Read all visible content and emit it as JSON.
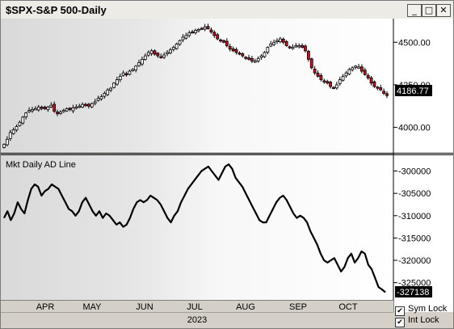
{
  "window": {
    "title": "$SPX-S&P 500-Daily",
    "minimize_glyph": "_",
    "maximize_glyph": "□",
    "close_glyph": "✕"
  },
  "x_axis": {
    "months": [
      "APR",
      "MAY",
      "JUN",
      "JUL",
      "AUG",
      "SEP",
      "OCT"
    ],
    "year": "2023"
  },
  "locks": {
    "sym_lock": {
      "label": "Sym Lock",
      "checked": true
    },
    "int_lock": {
      "label": "Int Lock",
      "checked": true
    }
  },
  "chart_data": [
    {
      "type": "candlestick",
      "title": "$SPX-S&P 500-Daily",
      "y_ticks": [
        4000,
        4250,
        4500
      ],
      "y_tick_labels": [
        "4000.00",
        "4250.00",
        "4500.00"
      ],
      "ylim": [
        3870,
        4620
      ],
      "last_value_label": "4186.77",
      "x_month_index": [
        0.5,
        1.5,
        2.5,
        3.5,
        4.5,
        5.5,
        6.5
      ],
      "closes": [
        3900,
        3930,
        3970,
        3985,
        4005,
        4030,
        4060,
        4085,
        4100,
        4105,
        4110,
        4120,
        4115,
        4110,
        4120,
        4130,
        4095,
        4080,
        4090,
        4100,
        4110,
        4105,
        4115,
        4120,
        4125,
        4135,
        4130,
        4125,
        4140,
        4150,
        4170,
        4180,
        4200,
        4220,
        4230,
        4260,
        4280,
        4300,
        4320,
        4310,
        4330,
        4340,
        4360,
        4380,
        4400,
        4420,
        4440,
        4450,
        4430,
        4420,
        4410,
        4425,
        4440,
        4455,
        4470,
        4490,
        4510,
        4530,
        4540,
        4555,
        4560,
        4570,
        4575,
        4580,
        4590,
        4580,
        4560,
        4540,
        4520,
        4510,
        4500,
        4480,
        4460,
        4450,
        4440,
        4430,
        4420,
        4410,
        4400,
        4390,
        4390,
        4405,
        4420,
        4440,
        4470,
        4490,
        4500,
        4510,
        4520,
        4500,
        4480,
        4470,
        4470,
        4480,
        4480,
        4470,
        4450,
        4400,
        4350,
        4320,
        4300,
        4280,
        4270,
        4260,
        4240,
        4230,
        4250,
        4280,
        4300,
        4320,
        4340,
        4350,
        4360,
        4355,
        4330,
        4310,
        4290,
        4260,
        4240,
        4230,
        4220,
        4200,
        4186.77
      ]
    },
    {
      "type": "line",
      "series": [
        {
          "name": "Mkt Daily AD Line"
        }
      ],
      "title": "Mkt Daily AD Line",
      "y_ticks": [
        -300000,
        -305000,
        -310000,
        -315000,
        -320000,
        -325000
      ],
      "y_tick_labels": [
        "-300000",
        "-305000",
        "-310000",
        "-315000",
        "-320000",
        "-325000"
      ],
      "ylim": [
        -328500,
        -297000
      ],
      "last_value_label": "-327138",
      "values": [
        -310500,
        -309000,
        -311000,
        -309500,
        -307000,
        -308500,
        -309500,
        -306500,
        -304000,
        -303000,
        -303500,
        -305500,
        -304500,
        -304000,
        -303000,
        -303500,
        -304000,
        -305500,
        -307000,
        -308500,
        -309000,
        -310000,
        -309000,
        -307000,
        -306000,
        -307500,
        -309000,
        -310000,
        -309000,
        -310500,
        -309500,
        -310000,
        -311000,
        -312000,
        -311500,
        -312500,
        -312000,
        -310500,
        -308500,
        -307000,
        -306500,
        -307000,
        -306500,
        -305500,
        -306000,
        -306500,
        -307500,
        -309000,
        -310500,
        -311500,
        -310000,
        -309000,
        -307000,
        -305500,
        -304000,
        -303000,
        -302000,
        -301000,
        -300000,
        -299500,
        -299000,
        -300000,
        -301000,
        -302000,
        -300500,
        -299000,
        -298500,
        -299500,
        -301500,
        -302500,
        -303500,
        -305000,
        -306500,
        -308000,
        -309500,
        -311000,
        -311500,
        -311500,
        -310000,
        -308500,
        -307000,
        -306000,
        -305500,
        -306500,
        -308000,
        -309500,
        -310500,
        -310000,
        -310500,
        -311500,
        -313500,
        -315000,
        -316500,
        -318500,
        -320000,
        -320500,
        -320000,
        -319500,
        -321000,
        -322500,
        -321500,
        -319500,
        -318500,
        -320500,
        -319500,
        -318000,
        -318500,
        -321000,
        -322000,
        -324000,
        -326000,
        -326500,
        -327138
      ]
    }
  ]
}
